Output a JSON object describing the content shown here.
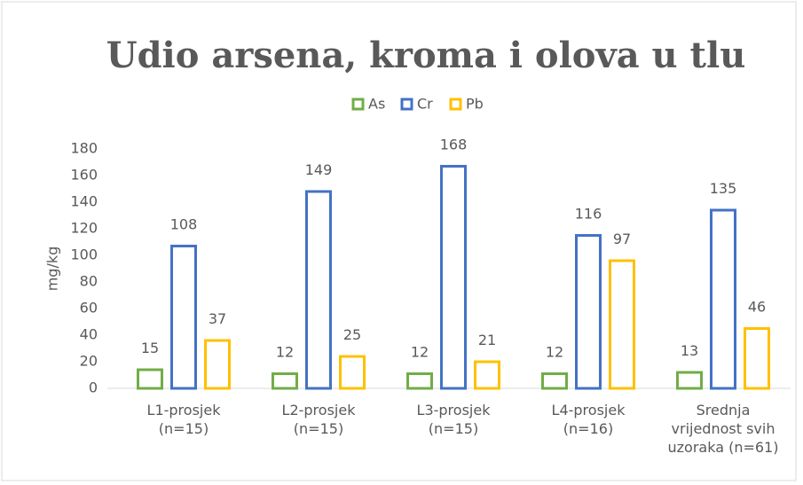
{
  "chart_data": {
    "type": "bar",
    "title": "Udio arsena, kroma i olova u tlu",
    "y_label": "mg/kg",
    "categories": [
      "L1-prosjek\n(n=15)",
      "L2-prosjek\n(n=15)",
      "L3-prosjek\n(n=15)",
      "L4-prosjek\n(n=16)",
      "Srednja\nvrijednost svih\nuzoraka (n=61)"
    ],
    "series": [
      {
        "name": "As",
        "color": "#70ad47",
        "values": [
          15,
          12,
          12,
          12,
          13
        ]
      },
      {
        "name": "Cr",
        "color": "#4472c4",
        "values": [
          108,
          149,
          168,
          116,
          135
        ]
      },
      {
        "name": "Pb",
        "color": "#ffc000",
        "values": [
          37,
          25,
          21,
          97,
          46
        ]
      }
    ],
    "ylim": [
      0,
      180
    ],
    "yticks": [
      0,
      20,
      40,
      60,
      80,
      100,
      120,
      140,
      160,
      180
    ],
    "grid": false,
    "legend": "top"
  }
}
